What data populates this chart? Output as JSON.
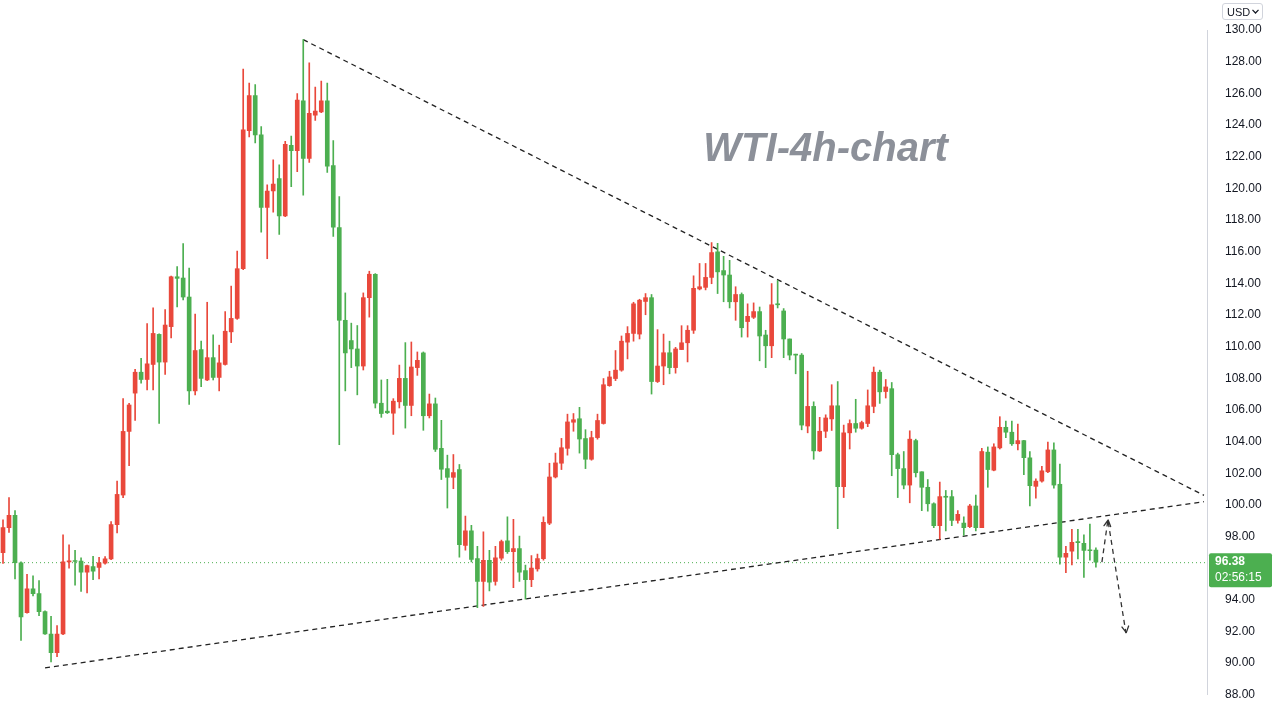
{
  "chart_data": {
    "type": "candlestick",
    "title": "WTI-4h-chart",
    "ylabel": "USD",
    "categories": [
      null,
      null,
      null,
      null,
      null,
      null,
      null,
      null,
      null,
      null,
      null,
      null,
      null,
      null,
      null,
      null,
      null,
      null,
      null,
      null,
      null,
      null,
      null,
      null,
      null,
      null,
      null,
      null,
      null,
      null,
      null,
      null,
      null,
      null,
      null,
      null,
      null,
      null,
      null,
      null,
      null,
      null,
      null,
      null,
      null,
      null,
      null,
      null,
      null,
      null,
      null,
      null,
      null,
      null,
      null,
      null,
      null,
      null,
      null,
      null,
      null,
      null,
      null,
      null,
      null,
      null,
      null,
      null,
      null,
      null,
      null,
      null,
      null,
      null,
      null,
      null,
      null,
      null,
      null,
      null,
      null,
      null,
      null,
      null,
      null,
      null,
      null,
      null,
      null,
      null,
      null,
      null,
      null,
      null,
      null,
      null,
      null,
      null,
      null,
      null,
      null,
      null,
      null,
      null,
      null,
      null,
      null,
      null,
      null,
      null,
      null,
      null,
      null,
      null,
      null,
      null,
      null,
      null,
      null,
      null,
      null,
      null,
      null,
      null,
      null,
      null,
      null,
      null,
      null,
      null,
      null,
      null,
      null,
      null,
      null,
      null,
      null,
      null,
      null,
      null,
      null,
      null,
      null,
      null,
      null,
      null,
      null,
      null,
      null,
      null,
      null,
      null,
      null,
      null,
      null,
      null,
      null,
      null,
      null,
      null,
      null,
      null,
      null,
      null,
      null,
      null,
      null,
      null,
      null,
      null,
      null,
      null,
      null,
      null,
      null,
      null,
      null,
      null,
      null,
      null,
      null,
      null,
      null,
      null,
      null,
      null,
      null,
      null,
      null,
      null,
      null,
      null,
      null,
      null,
      null,
      null,
      null,
      null,
      null,
      null,
      null
    ],
    "ohlc": [
      [
        96.98,
        99.05,
        96.3,
        98.56
      ],
      [
        98.56,
        100.46,
        98.26,
        99.34
      ],
      [
        99.34,
        99.64,
        95.32,
        96.34
      ],
      [
        96.34,
        96.4,
        91.43,
        92.92
      ],
      [
        93.19,
        95.61,
        93.15,
        94.69
      ],
      [
        94.69,
        95.51,
        94.24,
        94.39
      ],
      [
        94.39,
        95.22,
        93.0,
        93.25
      ],
      [
        93.25,
        93.3,
        91.82,
        91.84
      ],
      [
        91.84,
        92.96,
        90.07,
        90.66
      ],
      [
        90.66,
        92.37,
        90.41,
        91.84
      ],
      [
        91.84,
        98.1,
        91.8,
        96.4
      ],
      [
        96.4,
        97.48,
        96.0,
        96.45
      ],
      [
        96.45,
        97.12,
        94.92,
        96.42
      ],
      [
        96.45,
        96.65,
        94.53,
        95.75
      ],
      [
        95.75,
        96.2,
        94.43,
        96.16
      ],
      [
        96.1,
        96.75,
        95.28,
        95.81
      ],
      [
        96.04,
        96.69,
        95.32,
        96.34
      ],
      [
        96.32,
        96.73,
        96.26,
        96.59
      ],
      [
        96.59,
        98.95,
        96.53,
        98.75
      ],
      [
        98.75,
        101.5,
        98.22,
        100.66
      ],
      [
        100.62,
        106.71,
        100.46,
        104.64
      ],
      [
        104.64,
        106.41,
        102.48,
        106.31
      ],
      [
        107.06,
        108.57,
        105.33,
        108.38
      ],
      [
        108.38,
        109.26,
        107.69,
        107.92
      ],
      [
        107.92,
        111.46,
        107.26,
        108.91
      ],
      [
        108.87,
        112.44,
        107.26,
        110.83
      ],
      [
        110.77,
        110.8,
        105.14,
        109.02
      ],
      [
        109.02,
        112.34,
        108.24,
        111.36
      ],
      [
        111.26,
        114.45,
        110.54,
        114.41
      ],
      [
        114.41,
        115.05,
        112.5,
        114.31
      ],
      [
        114.33,
        116.5,
        112.95,
        113.13
      ],
      [
        113.13,
        114.96,
        106.35,
        107.2
      ],
      [
        107.2,
        112.05,
        106.94,
        109.75
      ],
      [
        109.81,
        110.35,
        107.46,
        107.99
      ],
      [
        107.89,
        112.8,
        107.85,
        109.3
      ],
      [
        109.3,
        110.74,
        107.89,
        108.05
      ],
      [
        108.05,
        110.09,
        107.2,
        108.97
      ],
      [
        108.87,
        112.21,
        108.83,
        110.97
      ],
      [
        110.93,
        113.82,
        110.25,
        111.78
      ],
      [
        111.78,
        116.04,
        111.72,
        114.92
      ],
      [
        114.92,
        127.53,
        114.86,
        123.7
      ],
      [
        123.64,
        126.65,
        123.25,
        125.86
      ],
      [
        125.86,
        126.55,
        122.86,
        123.37
      ],
      [
        123.37,
        123.9,
        117.22,
        118.79
      ],
      [
        118.79,
        120.22,
        115.55,
        119.83
      ],
      [
        119.83,
        121.79,
        118.49,
        120.26
      ],
      [
        120.62,
        121.48,
        117.08,
        118.26
      ],
      [
        118.26,
        122.97,
        118.2,
        122.78
      ],
      [
        122.72,
        123.3,
        120.1,
        122.38
      ],
      [
        122.38,
        125.99,
        121.05,
        125.57
      ],
      [
        125.53,
        129.39,
        119.57,
        121.89
      ],
      [
        121.89,
        127.92,
        121.64,
        124.74
      ],
      [
        124.62,
        126.39,
        124.29,
        124.88
      ],
      [
        124.82,
        126.78,
        124.78,
        125.53
      ],
      [
        125.53,
        126.65,
        121.01,
        121.4
      ],
      [
        121.44,
        123.01,
        116.96,
        117.55
      ],
      [
        117.51,
        119.48,
        103.8,
        111.66
      ],
      [
        111.66,
        113.39,
        107.2,
        109.6
      ],
      [
        110.38,
        111.48,
        108.67,
        109.85
      ],
      [
        109.85,
        111.33,
        106.95,
        108.77
      ],
      [
        108.77,
        113.39,
        108.52,
        113.09
      ],
      [
        113.09,
        114.76,
        111.86,
        114.57
      ],
      [
        114.57,
        114.61,
        106.12,
        106.42
      ],
      [
        106.42,
        107.89,
        105.53,
        105.77
      ],
      [
        105.92,
        107.93,
        105.77,
        105.82
      ],
      [
        105.79,
        106.71,
        104.45,
        106.55
      ],
      [
        106.51,
        108.83,
        106.12,
        107.99
      ],
      [
        107.99,
        110.25,
        104.85,
        106.28
      ],
      [
        106.28,
        110.29,
        105.63,
        108.71
      ],
      [
        108.67,
        109.66,
        108.18,
        109.13
      ],
      [
        109.6,
        109.66,
        104.71,
        105.63
      ],
      [
        105.63,
        107.0,
        105.49,
        106.38
      ],
      [
        106.38,
        106.75,
        103.37,
        103.51
      ],
      [
        103.57,
        105.34,
        101.6,
        102.25
      ],
      [
        102.29,
        103.14,
        99.8,
        101.74
      ],
      [
        101.74,
        103.18,
        101.02,
        102.04
      ],
      [
        102.23,
        102.55,
        96.69,
        97.48
      ],
      [
        97.44,
        99.29,
        97.13,
        98.36
      ],
      [
        98.36,
        98.7,
        96.4,
        96.56
      ],
      [
        96.6,
        97.38,
        93.51,
        95.16
      ],
      [
        95.16,
        98.3,
        93.59,
        96.5
      ],
      [
        96.5,
        97.13,
        94.57,
        95.12
      ],
      [
        95.16,
        97.38,
        94.93,
        96.65
      ],
      [
        96.63,
        97.78,
        96.5,
        97.68
      ],
      [
        97.72,
        99.25,
        96.93,
        97.05
      ],
      [
        97.05,
        99.09,
        94.77,
        97.24
      ],
      [
        97.24,
        98.03,
        95.16,
        95.75
      ],
      [
        95.85,
        96.2,
        94.04,
        95.28
      ],
      [
        95.28,
        96.79,
        94.83,
        96.01
      ],
      [
        95.95,
        96.89,
        95.81,
        96.6
      ],
      [
        96.6,
        99.25,
        96.5,
        98.89
      ],
      [
        98.85,
        102.63,
        98.75,
        101.76
      ],
      [
        101.76,
        103.27,
        101.7,
        102.65
      ],
      [
        102.63,
        104.2,
        102.23,
        103.61
      ],
      [
        103.57,
        105.73,
        103.14,
        105.24
      ],
      [
        105.22,
        105.77,
        104.65,
        105.38
      ],
      [
        105.44,
        106.16,
        103.27,
        104.16
      ],
      [
        104.19,
        104.75,
        102.29,
        102.88
      ],
      [
        102.88,
        104.65,
        102.82,
        104.25
      ],
      [
        104.25,
        105.73,
        104.15,
        105.33
      ],
      [
        105.14,
        107.98,
        105.1,
        107.59
      ],
      [
        107.53,
        108.44,
        107.49,
        108.08
      ],
      [
        107.98,
        109.75,
        107.85,
        108.51
      ],
      [
        108.51,
        110.67,
        108.44,
        110.34
      ],
      [
        110.28,
        111.26,
        109.22,
        110.83
      ],
      [
        110.83,
        112.8,
        110.34,
        112.7
      ],
      [
        110.79,
        112.99,
        110.48,
        112.93
      ],
      [
        112.85,
        113.35,
        112.01,
        113.09
      ],
      [
        113.09,
        113.29,
        107.0,
        107.79
      ],
      [
        107.79,
        111.07,
        107.73,
        108.77
      ],
      [
        108.77,
        110.79,
        107.59,
        109.61
      ],
      [
        109.61,
        110.34,
        108.28,
        108.67
      ],
      [
        108.67,
        109.95,
        108.32,
        109.85
      ],
      [
        109.81,
        111.32,
        109.81,
        110.24
      ],
      [
        110.24,
        111.32,
        109.03,
        111.03
      ],
      [
        111.03,
        114.47,
        110.83,
        113.68
      ],
      [
        113.64,
        115.25,
        113.58,
        113.78
      ],
      [
        113.74,
        115.25,
        113.58,
        114.37
      ],
      [
        114.37,
        116.57,
        113.97,
        115.94
      ],
      [
        115.98,
        116.53,
        113.35,
        114.72
      ],
      [
        114.8,
        115.7,
        112.83,
        114.52
      ],
      [
        114.52,
        115.45,
        112.44,
        112.83
      ],
      [
        112.83,
        113.78,
        111.66,
        113.29
      ],
      [
        113.29,
        113.39,
        110.6,
        111.19
      ],
      [
        111.58,
        112.7,
        110.6,
        111.91
      ],
      [
        111.85,
        112.76,
        111.77,
        112.21
      ],
      [
        112.21,
        112.5,
        109.1,
        110.67
      ],
      [
        110.73,
        111.03,
        108.67,
        110.05
      ],
      [
        110.05,
        113.98,
        109.3,
        112.64
      ],
      [
        112.68,
        114.17,
        112.44,
        112.64
      ],
      [
        112.25,
        112.4,
        109.3,
        110.48
      ],
      [
        110.48,
        110.48,
        109.16,
        109.46
      ],
      [
        109.5,
        109.52,
        108.28,
        109.46
      ],
      [
        109.46,
        109.56,
        104.74,
        105.04
      ],
      [
        104.98,
        108.44,
        104.55,
        106.22
      ],
      [
        106.22,
        106.51,
        102.88,
        103.41
      ],
      [
        103.41,
        105.53,
        103.37,
        104.65
      ],
      [
        104.65,
        105.69,
        104.25,
        105.49
      ],
      [
        105.43,
        107.59,
        104.7,
        106.26
      ],
      [
        106.26,
        107.79,
        98.5,
        101.15
      ],
      [
        101.15,
        105.04,
        100.46,
        104.55
      ],
      [
        104.55,
        105.37,
        103.53,
        105.14
      ],
      [
        105.14,
        106.67,
        104.59,
        104.84
      ],
      [
        104.84,
        105.29,
        104.78,
        105.2
      ],
      [
        105.14,
        107.26,
        104.94,
        106.26
      ],
      [
        106.22,
        108.71,
        105.82,
        108.38
      ],
      [
        108.38,
        108.51,
        106.41,
        107.14
      ],
      [
        107.16,
        107.92,
        106.75,
        107.45
      ],
      [
        107.34,
        107.73,
        101.84,
        103.17
      ],
      [
        103.17,
        103.27,
        100.46,
        102.29
      ],
      [
        102.29,
        103.37,
        101.01,
        101.25
      ],
      [
        101.25,
        104.68,
        100.13,
        104.15
      ],
      [
        104.06,
        104.15,
        101.76,
        102.03
      ],
      [
        102.09,
        102.09,
        99.64,
        101.11
      ],
      [
        101.11,
        101.6,
        99.6,
        100.07
      ],
      [
        100.07,
        100.13,
        98.56,
        98.69
      ],
      [
        98.69,
        101.44,
        97.83,
        100.52
      ],
      [
        100.52,
        100.91,
        98.36,
        100.48
      ],
      [
        100.52,
        100.91,
        98.69,
        99.01
      ],
      [
        99.01,
        99.64,
        98.85,
        99.4
      ],
      [
        98.85,
        99.24,
        98.07,
        98.56
      ],
      [
        98.62,
        100.03,
        98.56,
        99.93
      ],
      [
        99.93,
        100.62,
        98.36,
        98.56
      ],
      [
        98.56,
        103.57,
        98.56,
        103.37
      ],
      [
        103.33,
        103.66,
        101.11,
        102.23
      ],
      [
        102.19,
        103.86,
        102.15,
        103.66
      ],
      [
        103.6,
        105.57,
        103.53,
        104.9
      ],
      [
        104.9,
        105.29,
        104.25,
        104.59
      ],
      [
        104.59,
        105.29,
        103.76,
        103.86
      ],
      [
        103.86,
        105.1,
        103.47,
        104.06
      ],
      [
        104.06,
        104.08,
        101.9,
        102.98
      ],
      [
        102.97,
        103.37,
        99.93,
        101.21
      ],
      [
        101.17,
        101.64,
        100.42,
        101.5
      ],
      [
        101.5,
        102.43,
        101.44,
        102.15
      ],
      [
        102.09,
        103.96,
        102.03,
        103.47
      ],
      [
        103.47,
        103.92,
        101.05,
        101.25
      ],
      [
        101.3,
        102.58,
        96.26,
        96.69
      ],
      [
        96.69,
        97.38,
        95.71,
        96.93
      ],
      [
        97.08,
        98.46,
        96.2,
        97.63
      ],
      [
        97.65,
        98.46,
        96.59,
        97.61
      ],
      [
        97.57,
        98.11,
        95.41,
        97.12
      ],
      [
        97.12,
        98.79,
        96.5,
        97.1
      ],
      [
        97.14,
        97.28,
        96.06,
        96.38
      ],
      null,
      null,
      null,
      null,
      null,
      null,
      null,
      null,
      null,
      null,
      null,
      null,
      null,
      null,
      null,
      null,
      null,
      null
    ],
    "colors": [
      "#e9483b",
      "#e9483b",
      "#4caf50",
      "#4caf50",
      "#e9483b",
      "#4caf50",
      "#4caf50",
      "#4caf50",
      "#4caf50",
      "#e9483b",
      "#e9483b",
      "#e9483b",
      "#4caf50",
      "#4caf50",
      "#e9483b",
      "#4caf50",
      "#e9483b",
      "#e9483b",
      "#e9483b",
      "#e9483b",
      "#e9483b",
      "#e9483b",
      "#e9483b",
      "#4caf50",
      "#e9483b",
      "#e9483b",
      "#4caf50",
      "#e9483b",
      "#e9483b",
      "#4caf50",
      "#4caf50",
      "#4caf50",
      "#e9483b",
      "#4caf50",
      "#e9483b",
      "#4caf50",
      "#e9483b",
      "#e9483b",
      "#e9483b",
      "#e9483b",
      "#e9483b",
      "#e9483b",
      "#4caf50",
      "#4caf50",
      "#e9483b",
      "#e9483b",
      "#4caf50",
      "#e9483b",
      "#4caf50",
      "#e9483b",
      "#4caf50",
      "#e9483b",
      "#e9483b",
      "#e9483b",
      "#4caf50",
      "#4caf50",
      "#4caf50",
      "#4caf50",
      "#4caf50",
      "#4caf50",
      "#e9483b",
      "#e9483b",
      "#4caf50",
      "#4caf50",
      "#4caf50",
      "#e9483b",
      "#e9483b",
      "#4caf50",
      "#e9483b",
      "#e9483b",
      "#4caf50",
      "#e9483b",
      "#4caf50",
      "#4caf50",
      "#4caf50",
      "#e9483b",
      "#4caf50",
      "#e9483b",
      "#4caf50",
      "#4caf50",
      "#e9483b",
      "#4caf50",
      "#e9483b",
      "#e9483b",
      "#4caf50",
      "#e9483b",
      "#4caf50",
      "#4caf50",
      "#e9483b",
      "#e9483b",
      "#e9483b",
      "#e9483b",
      "#e9483b",
      "#e9483b",
      "#e9483b",
      "#e9483b",
      "#4caf50",
      "#4caf50",
      "#e9483b",
      "#e9483b",
      "#e9483b",
      "#e9483b",
      "#e9483b",
      "#e9483b",
      "#e9483b",
      "#e9483b",
      "#e9483b",
      "#e9483b",
      "#4caf50",
      "#e9483b",
      "#e9483b",
      "#4caf50",
      "#e9483b",
      "#e9483b",
      "#e9483b",
      "#e9483b",
      "#e9483b",
      "#e9483b",
      "#e9483b",
      "#4caf50",
      "#4caf50",
      "#4caf50",
      "#e9483b",
      "#4caf50",
      "#e9483b",
      "#e9483b",
      "#4caf50",
      "#4caf50",
      "#e9483b",
      "#4caf50",
      "#4caf50",
      "#4caf50",
      "#4caf50",
      "#4caf50",
      "#e9483b",
      "#4caf50",
      "#e9483b",
      "#e9483b",
      "#e9483b",
      "#4caf50",
      "#e9483b",
      "#e9483b",
      "#4caf50",
      "#e9483b",
      "#e9483b",
      "#e9483b",
      "#4caf50",
      "#e9483b",
      "#4caf50",
      "#4caf50",
      "#4caf50",
      "#e9483b",
      "#4caf50",
      "#4caf50",
      "#4caf50",
      "#4caf50",
      "#e9483b",
      "#4caf50",
      "#4caf50",
      "#e9483b",
      "#4caf50",
      "#e9483b",
      "#4caf50",
      "#e9483b",
      "#4caf50",
      "#e9483b",
      "#e9483b",
      "#4caf50",
      "#4caf50",
      "#e9483b",
      "#4caf50",
      "#4caf50",
      "#e9483b",
      "#e9483b",
      "#e9483b",
      "#4caf50",
      "#4caf50",
      "#e9483b",
      "#e9483b",
      "#4caf50",
      "#4caf50",
      "#4caf50",
      "#4caf50",
      null,
      null,
      null,
      null,
      null,
      null,
      null,
      null,
      null,
      null,
      null,
      null,
      null,
      null,
      null,
      null,
      null,
      null
    ],
    "series": [
      {
        "type": "line",
        "color": "#222222",
        "line_style": "dashed",
        "values": [
          null,
          null,
          null,
          null,
          null,
          null,
          null,
          null,
          null,
          null,
          null,
          null,
          null,
          null,
          null,
          null,
          null,
          null,
          null,
          null,
          null,
          null,
          null,
          null,
          null,
          null,
          null,
          null,
          null,
          null,
          null,
          null,
          null,
          null,
          null,
          null,
          null,
          null,
          null,
          null,
          null,
          null,
          null,
          null,
          null,
          null,
          null,
          null,
          null,
          null,
          129.39,
          null,
          null,
          null,
          null,
          null,
          null,
          null,
          null,
          null,
          null,
          null,
          null,
          null,
          null,
          null,
          null,
          null,
          null,
          null,
          null,
          null,
          null,
          null,
          null,
          null,
          null,
          null,
          null,
          null,
          null,
          null,
          null,
          null,
          null,
          null,
          null,
          null,
          null,
          null,
          null,
          null,
          null,
          null,
          null,
          null,
          null,
          null,
          null,
          null,
          null,
          null,
          null,
          null,
          null,
          null,
          null,
          null,
          null,
          null,
          null,
          null,
          null,
          null,
          null,
          null,
          null,
          null,
          null,
          null,
          null,
          null,
          null,
          null,
          null,
          null,
          null,
          null,
          null,
          null,
          null,
          null,
          null,
          null,
          null,
          null,
          null,
          null,
          null,
          null,
          null,
          null,
          null,
          null,
          null,
          null,
          null,
          null,
          null,
          null,
          null,
          null,
          null,
          null,
          null,
          null,
          null,
          null,
          null,
          null,
          null,
          null,
          null,
          null,
          null,
          null,
          null,
          null,
          null,
          null,
          null,
          null,
          null,
          null,
          null,
          null,
          null,
          null,
          null,
          null,
          null,
          null,
          null,
          null,
          null,
          null,
          null,
          null,
          null,
          null,
          null,
          null,
          null,
          null,
          null,
          null,
          null,
          null,
          null,
          null,
          100.6
        ]
      },
      {
        "type": "line",
        "color": "#222222",
        "line_style": "dashed",
        "values": [
          null,
          null,
          null,
          null,
          null,
          null,
          null,
          89.7,
          null,
          null,
          null,
          null,
          null,
          null,
          null,
          null,
          null,
          null,
          null,
          null,
          null,
          null,
          null,
          null,
          null,
          null,
          null,
          null,
          null,
          null,
          null,
          null,
          null,
          null,
          null,
          null,
          null,
          null,
          null,
          null,
          null,
          null,
          null,
          null,
          null,
          null,
          null,
          null,
          null,
          null,
          null,
          null,
          null,
          null,
          null,
          null,
          null,
          null,
          null,
          null,
          null,
          null,
          null,
          null,
          null,
          null,
          null,
          null,
          null,
          null,
          null,
          null,
          null,
          null,
          null,
          null,
          null,
          null,
          null,
          null,
          null,
          null,
          null,
          null,
          null,
          null,
          null,
          null,
          null,
          null,
          null,
          null,
          null,
          null,
          null,
          null,
          null,
          null,
          null,
          null,
          null,
          null,
          null,
          null,
          null,
          null,
          null,
          null,
          null,
          null,
          null,
          null,
          null,
          null,
          null,
          null,
          null,
          null,
          null,
          null,
          null,
          null,
          null,
          null,
          null,
          null,
          null,
          null,
          null,
          null,
          null,
          null,
          null,
          null,
          null,
          null,
          null,
          null,
          null,
          null,
          null,
          null,
          null,
          null,
          null,
          null,
          null,
          null,
          null,
          null,
          null,
          null,
          null,
          null,
          null,
          null,
          null,
          null,
          null,
          null,
          null,
          null,
          null,
          null,
          null,
          null,
          null,
          null,
          null,
          null,
          null,
          null,
          null,
          null,
          null,
          null,
          null,
          null,
          null,
          null,
          null,
          null,
          null,
          null,
          null,
          null,
          null,
          null,
          null,
          null,
          null,
          null,
          null,
          null,
          null,
          null,
          null,
          null,
          null,
          null,
          100.2
        ]
      },
      {
        "type": "line",
        "color": "#333333",
        "line_style": "dashed",
        "values": [
          null,
          null,
          null,
          null,
          null,
          null,
          null,
          null,
          null,
          null,
          null,
          null,
          null,
          null,
          null,
          null,
          null,
          null,
          null,
          null,
          null,
          null,
          null,
          null,
          null,
          null,
          null,
          null,
          null,
          null,
          null,
          null,
          null,
          null,
          null,
          null,
          null,
          null,
          null,
          null,
          null,
          null,
          null,
          null,
          null,
          null,
          null,
          null,
          null,
          null,
          null,
          null,
          null,
          null,
          null,
          null,
          null,
          null,
          null,
          null,
          null,
          null,
          null,
          null,
          null,
          null,
          null,
          null,
          null,
          null,
          null,
          null,
          null,
          null,
          null,
          null,
          null,
          null,
          null,
          null,
          null,
          null,
          null,
          null,
          null,
          null,
          null,
          null,
          null,
          null,
          null,
          null,
          null,
          null,
          null,
          null,
          null,
          null,
          null,
          null,
          null,
          null,
          null,
          null,
          null,
          null,
          null,
          null,
          null,
          null,
          null,
          null,
          null,
          null,
          null,
          null,
          null,
          null,
          null,
          null,
          null,
          null,
          null,
          null,
          null,
          null,
          null,
          null,
          null,
          null,
          null,
          null,
          null,
          null,
          null,
          null,
          null,
          null,
          null,
          null,
          null,
          null,
          null,
          null,
          null,
          null,
          null,
          null,
          null,
          null,
          null,
          null,
          null,
          null,
          null,
          null,
          null,
          null,
          null,
          null,
          null,
          null,
          null,
          null,
          null,
          null,
          null,
          null,
          null,
          null,
          null,
          null,
          null,
          null,
          null,
          null,
          null,
          null,
          null,
          null,
          null,
          null,
          null,
          96.38,
          99.05,
          null,
          null,
          91.9,
          null,
          null,
          null,
          null,
          null,
          null,
          null,
          null,
          null,
          null,
          null,
          null,
          null
        ]
      }
    ],
    "ylim": [
      88,
      130
    ],
    "yticks": [
      {
        "value": 88,
        "label": "88.00"
      },
      {
        "value": 90,
        "label": "90.00"
      },
      {
        "value": 92,
        "label": "92.00"
      },
      {
        "value": 94,
        "label": "94.00"
      },
      {
        "value": 98,
        "label": "98.00"
      },
      {
        "value": 100,
        "label": "100.00"
      },
      {
        "value": 102,
        "label": "102.00"
      },
      {
        "value": 104,
        "label": "104.00"
      },
      {
        "value": 106,
        "label": "106.00"
      },
      {
        "value": 108,
        "label": "108.00"
      },
      {
        "value": 110,
        "label": "110.00"
      },
      {
        "value": 112,
        "label": "112.00"
      },
      {
        "value": 114,
        "label": "114.00"
      },
      {
        "value": 116,
        "label": "116.00"
      },
      {
        "value": 118,
        "label": "118.00"
      },
      {
        "value": 120,
        "label": "120.00"
      },
      {
        "value": 122,
        "label": "122.00"
      },
      {
        "value": 124,
        "label": "124.00"
      },
      {
        "value": 126,
        "label": "126.00"
      },
      {
        "value": 128,
        "label": "128.00"
      },
      {
        "value": 130,
        "label": "130.00"
      }
    ],
    "ref_lines": [
      {
        "axis": "y",
        "value": 96.38,
        "label": "96.38",
        "color": "#4caf50",
        "line_style": "dotted"
      }
    ],
    "annotations": [
      "02:56:15"
    ],
    "tick_labels": "y"
  }
}
